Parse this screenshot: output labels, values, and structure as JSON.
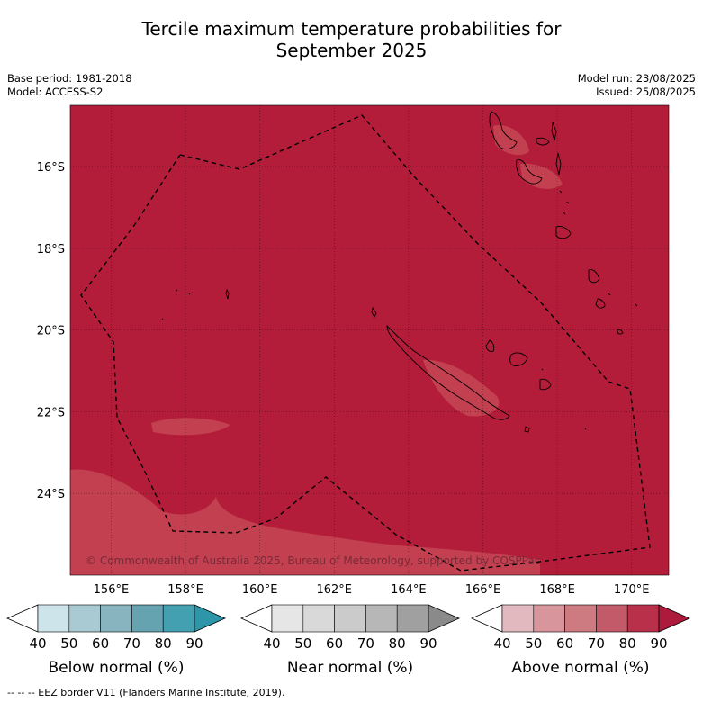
{
  "title_line1": "Tercile maximum temperature probabilities for",
  "title_line2": "September 2025",
  "meta": {
    "base_period": "Base period: 1981-2018",
    "model": "Model: ACCESS-S2",
    "model_run": "Model run: 23/08/2025",
    "issued": "Issued: 25/08/2025"
  },
  "map": {
    "lon_range": [
      154.9,
      171.0
    ],
    "lat_range": [
      -26.0,
      -14.5
    ],
    "lat_ticks": [
      "16°S",
      "18°S",
      "20°S",
      "22°S",
      "24°S"
    ],
    "lon_ticks": [
      "156°E",
      "158°E",
      "160°E",
      "162°E",
      "164°E",
      "166°E",
      "168°E",
      "170°E"
    ],
    "background_category": "Above normal",
    "background_probability_bin": "80-90",
    "colors": {
      "above_80_90": "#b31d3a",
      "above_70_80": "#c44654",
      "coast": "#000000",
      "eez": "#000000"
    },
    "copyright": "© Commonwealth of Australia 2025, Bureau of Meteorology, supported by COSPPac"
  },
  "colorbars": [
    {
      "label": "Below normal (%)",
      "ticks": [
        "40",
        "50",
        "60",
        "70",
        "80",
        "90"
      ],
      "colors": [
        "#ffffff",
        "#cde4ea",
        "#a9cad2",
        "#88b4bf",
        "#65a3b1",
        "#43a0b0",
        "#2d96a8"
      ]
    },
    {
      "label": "Near normal (%)",
      "ticks": [
        "40",
        "50",
        "60",
        "70",
        "80",
        "90"
      ],
      "colors": [
        "#ffffff",
        "#e6e6e6",
        "#d9d9d9",
        "#cbcbcb",
        "#b7b7b7",
        "#a0a0a0",
        "#8a8a8a"
      ]
    },
    {
      "label": "Above normal (%)",
      "ticks": [
        "40",
        "50",
        "60",
        "70",
        "80",
        "90"
      ],
      "colors": [
        "#ffffff",
        "#e2b9bf",
        "#d8959c",
        "#cd7a80",
        "#c35a69",
        "#b8304a",
        "#ad1a3c"
      ]
    }
  ],
  "footer": "--  --  -- EEZ border V11 (Flanders Marine Institute, 2019)."
}
